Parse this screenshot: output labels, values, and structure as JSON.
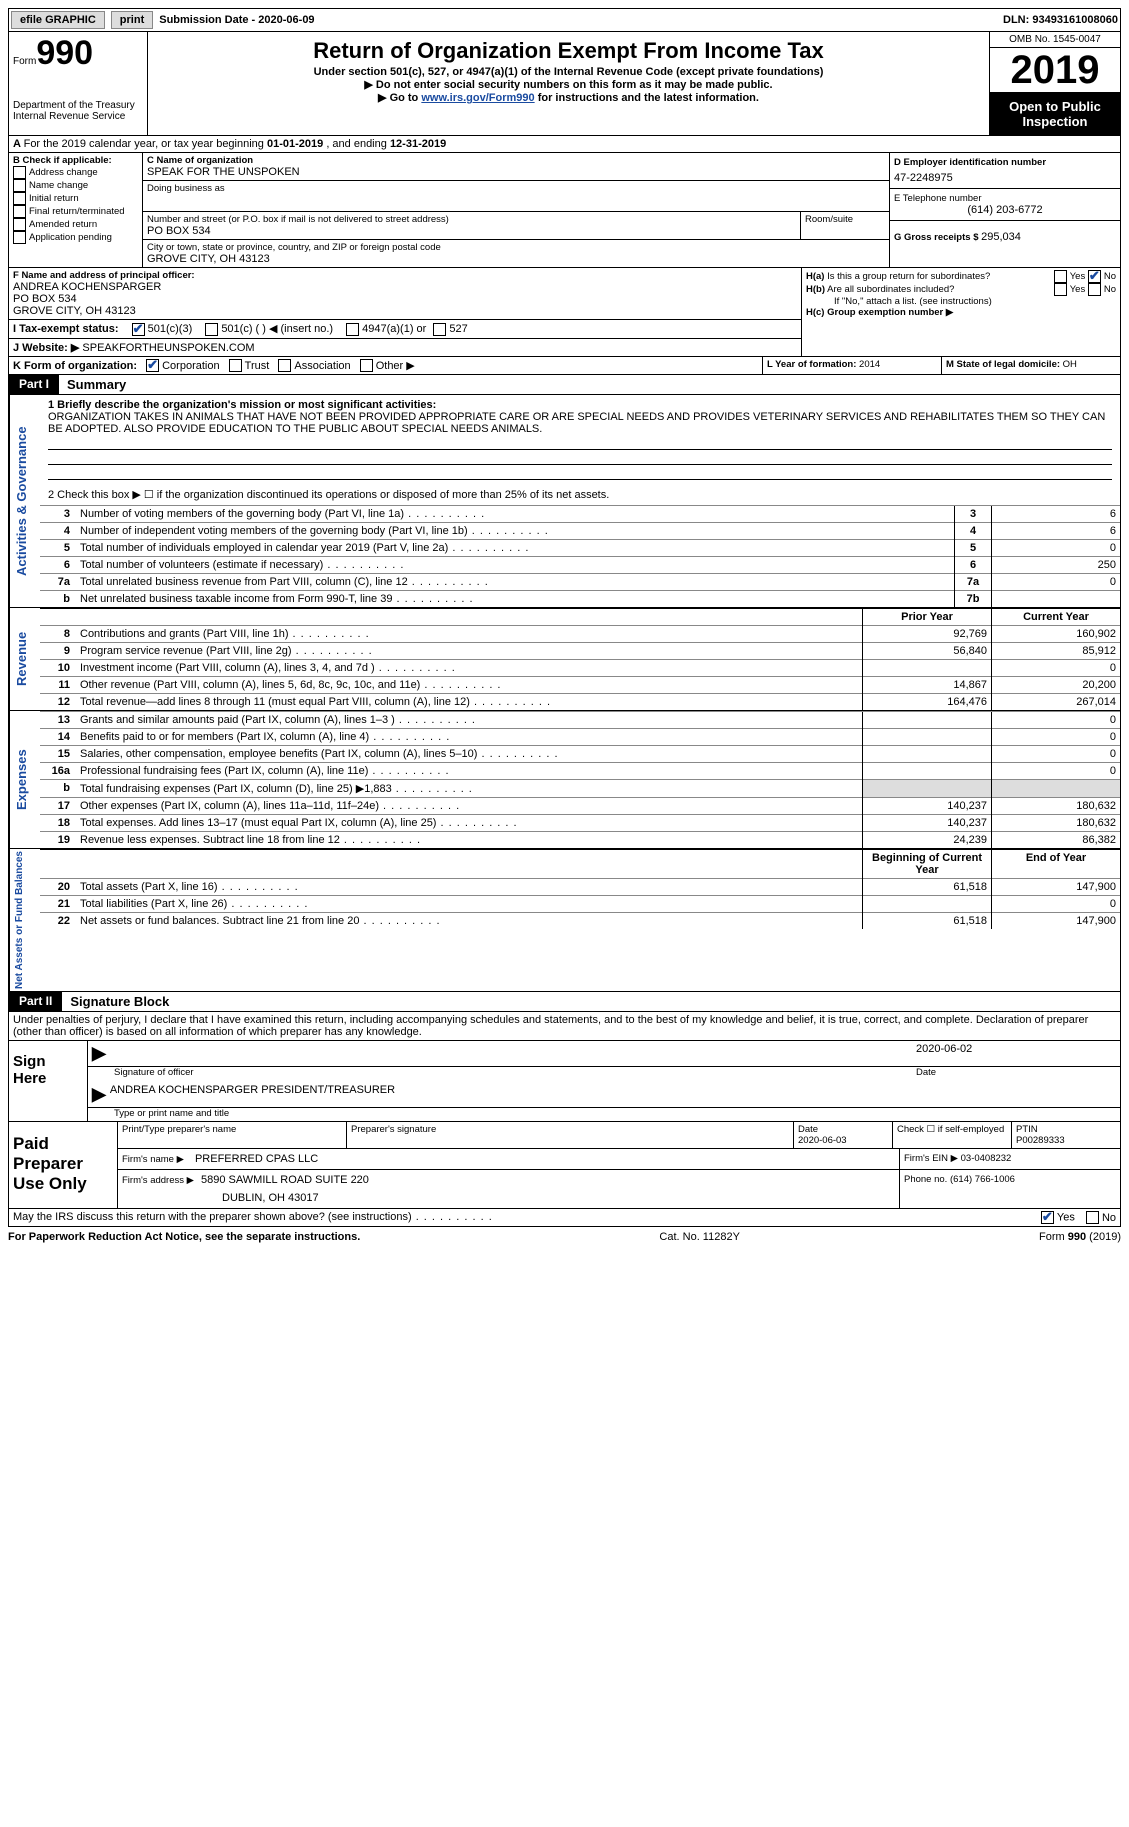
{
  "topbar": {
    "efile": "efile GRAPHIC",
    "print": "print",
    "sub_label": "Submission Date - ",
    "sub_date": "2020-06-09",
    "dln_label": "DLN: ",
    "dln": "93493161008060"
  },
  "header": {
    "form_label": "Form",
    "form_no": "990",
    "dept1": "Department of the Treasury",
    "dept2": "Internal Revenue Service",
    "title": "Return of Organization Exempt From Income Tax",
    "sub1": "Under section 501(c), 527, or 4947(a)(1) of the Internal Revenue Code (except private foundations)",
    "sub2": "▶ Do not enter social security numbers on this form as it may be made public.",
    "sub3_pre": "▶ Go to ",
    "sub3_link": "www.irs.gov/Form990",
    "sub3_post": " for instructions and the latest information.",
    "omb": "OMB No. 1545-0047",
    "year": "2019",
    "inspect": "Open to Public Inspection"
  },
  "lineA": {
    "text_pre": "For the 2019 calendar year, or tax year beginning ",
    "begin": "01-01-2019",
    "mid": " , and ending ",
    "end": "12-31-2019"
  },
  "checkB": {
    "label": "B Check if applicable:",
    "opts": [
      "Address change",
      "Name change",
      "Initial return",
      "Final return/terminated",
      "Amended return",
      "Application pending"
    ]
  },
  "secC": {
    "name_label": "C Name of organization",
    "name": "SPEAK FOR THE UNSPOKEN",
    "dba_label": "Doing business as",
    "street_label": "Number and street (or P.O. box if mail is not delivered to street address)",
    "room_label": "Room/suite",
    "street": "PO BOX 534",
    "city_label": "City or town, state or province, country, and ZIP or foreign postal code",
    "city": "GROVE CITY, OH  43123"
  },
  "secD": {
    "ein_label": "D Employer identification number",
    "ein": "47-2248975",
    "tel_label": "E Telephone number",
    "tel": "(614) 203-6772",
    "gross_label": "G Gross receipts $ ",
    "gross": "295,034"
  },
  "secF": {
    "label": "F Name and address of principal officer:",
    "l1": "ANDREA KOCHENSPARGER",
    "l2": "PO BOX 534",
    "l3": "GROVE CITY, OH  43123"
  },
  "secH": {
    "a_label": "H(a)  Is this a group return for subordinates?",
    "b_label": "H(b)  Are all subordinates included?",
    "b_note": "If \"No,\" attach a list. (see instructions)",
    "c_label": "H(c)  Group exemption number ▶",
    "yes": "Yes",
    "no": "No"
  },
  "secI": {
    "label": "I   Tax-exempt status:",
    "o1": "501(c)(3)",
    "o2": "501(c) (  ) ◀ (insert no.)",
    "o3": "4947(a)(1) or",
    "o4": "527"
  },
  "secJ": {
    "label": "J   Website: ▶",
    "val": "SPEAKFORTHEUNSPOKEN.COM"
  },
  "secK": {
    "label": "K Form of organization:",
    "o1": "Corporation",
    "o2": "Trust",
    "o3": "Association",
    "o4": "Other ▶"
  },
  "secL": {
    "label": "L Year of formation: ",
    "val": "2014"
  },
  "secM": {
    "label": "M State of legal domicile: ",
    "val": "OH"
  },
  "part1": {
    "tab": "Part I",
    "title": "Summary",
    "q1_label": "1  Briefly describe the organization's mission or most significant activities:",
    "q1_text": "ORGANIZATION TAKES IN ANIMALS THAT HAVE NOT BEEN PROVIDED APPROPRIATE CARE OR ARE SPECIAL NEEDS AND PROVIDES VETERINARY SERVICES AND REHABILITATES THEM SO THEY CAN BE ADOPTED. ALSO PROVIDE EDUCATION TO THE PUBLIC ABOUT SPECIAL NEEDS ANIMALS.",
    "q2": "2   Check this box ▶ ☐  if the organization discontinued its operations or disposed of more than 25% of its net assets.",
    "vlabel_ag": "Activities & Governance",
    "vlabel_rev": "Revenue",
    "vlabel_exp": "Expenses",
    "vlabel_net": "Net Assets or Fund Balances",
    "col_prior": "Prior Year",
    "col_curr": "Current Year",
    "col_beg": "Beginning of Current Year",
    "col_end": "End of Year",
    "gov_rows": [
      {
        "n": "3",
        "t": "Number of voting members of the governing body (Part VI, line 1a)",
        "box": "3",
        "v": "6"
      },
      {
        "n": "4",
        "t": "Number of independent voting members of the governing body (Part VI, line 1b)",
        "box": "4",
        "v": "6"
      },
      {
        "n": "5",
        "t": "Total number of individuals employed in calendar year 2019 (Part V, line 2a)",
        "box": "5",
        "v": "0"
      },
      {
        "n": "6",
        "t": "Total number of volunteers (estimate if necessary)",
        "box": "6",
        "v": "250"
      },
      {
        "n": "7a",
        "t": "Total unrelated business revenue from Part VIII, column (C), line 12",
        "box": "7a",
        "v": "0"
      },
      {
        "n": "b",
        "t": "Net unrelated business taxable income from Form 990-T, line 39",
        "box": "7b",
        "v": ""
      }
    ],
    "rev_rows": [
      {
        "n": "8",
        "t": "Contributions and grants (Part VIII, line 1h)",
        "p": "92,769",
        "c": "160,902"
      },
      {
        "n": "9",
        "t": "Program service revenue (Part VIII, line 2g)",
        "p": "56,840",
        "c": "85,912"
      },
      {
        "n": "10",
        "t": "Investment income (Part VIII, column (A), lines 3, 4, and 7d )",
        "p": "",
        "c": "0"
      },
      {
        "n": "11",
        "t": "Other revenue (Part VIII, column (A), lines 5, 6d, 8c, 9c, 10c, and 11e)",
        "p": "14,867",
        "c": "20,200"
      },
      {
        "n": "12",
        "t": "Total revenue—add lines 8 through 11 (must equal Part VIII, column (A), line 12)",
        "p": "164,476",
        "c": "267,014"
      }
    ],
    "exp_rows": [
      {
        "n": "13",
        "t": "Grants and similar amounts paid (Part IX, column (A), lines 1–3 )",
        "p": "",
        "c": "0"
      },
      {
        "n": "14",
        "t": "Benefits paid to or for members (Part IX, column (A), line 4)",
        "p": "",
        "c": "0"
      },
      {
        "n": "15",
        "t": "Salaries, other compensation, employee benefits (Part IX, column (A), lines 5–10)",
        "p": "",
        "c": "0"
      },
      {
        "n": "16a",
        "t": "Professional fundraising fees (Part IX, column (A), line 11e)",
        "p": "",
        "c": "0"
      },
      {
        "n": "b",
        "t": "Total fundraising expenses (Part IX, column (D), line 25) ▶1,883",
        "p": "GRAY",
        "c": "GRAY"
      },
      {
        "n": "17",
        "t": "Other expenses (Part IX, column (A), lines 11a–11d, 11f–24e)",
        "p": "140,237",
        "c": "180,632"
      },
      {
        "n": "18",
        "t": "Total expenses. Add lines 13–17 (must equal Part IX, column (A), line 25)",
        "p": "140,237",
        "c": "180,632"
      },
      {
        "n": "19",
        "t": "Revenue less expenses. Subtract line 18 from line 12",
        "p": "24,239",
        "c": "86,382"
      }
    ],
    "net_rows": [
      {
        "n": "20",
        "t": "Total assets (Part X, line 16)",
        "p": "61,518",
        "c": "147,900"
      },
      {
        "n": "21",
        "t": "Total liabilities (Part X, line 26)",
        "p": "",
        "c": "0"
      },
      {
        "n": "22",
        "t": "Net assets or fund balances. Subtract line 21 from line 20",
        "p": "61,518",
        "c": "147,900"
      }
    ]
  },
  "part2": {
    "tab": "Part II",
    "title": "Signature Block",
    "decl": "Under penalties of perjury, I declare that I have examined this return, including accompanying schedules and statements, and to the best of my knowledge and belief, it is true, correct, and complete. Declaration of preparer (other than officer) is based on all information of which preparer has any knowledge.",
    "sign_here": "Sign Here",
    "sig_officer": "Signature of officer",
    "sig_date": "Date",
    "sig_date_v": "2020-06-02",
    "sig_name_line": "ANDREA KOCHENSPARGER  PRESIDENT/TREASURER",
    "sig_name_label": "Type or print name and title",
    "paid": "Paid Preparer Use Only",
    "p_name_label": "Print/Type preparer's name",
    "p_sig_label": "Preparer's signature",
    "p_date_label": "Date",
    "p_date": "2020-06-03",
    "p_check": "Check ☐ if self-employed",
    "ptin_label": "PTIN",
    "ptin": "P00289333",
    "firm_name_label": "Firm's name    ▶",
    "firm_name": "PREFERRED CPAS LLC",
    "firm_ein_label": "Firm's EIN ▶",
    "firm_ein": "03-0408232",
    "firm_addr_label": "Firm's address ▶",
    "firm_addr1": "5890 SAWMILL ROAD SUITE 220",
    "firm_addr2": "DUBLIN, OH  43017",
    "firm_phone_label": "Phone no. ",
    "firm_phone": "(614) 766-1006",
    "may_irs": "May the IRS discuss this return with the preparer shown above? (see instructions)",
    "yes": "Yes",
    "no": "No"
  },
  "footer": {
    "l": "For Paperwork Reduction Act Notice, see the separate instructions.",
    "m": "Cat. No. 11282Y",
    "r": "Form 990 (2019)"
  }
}
